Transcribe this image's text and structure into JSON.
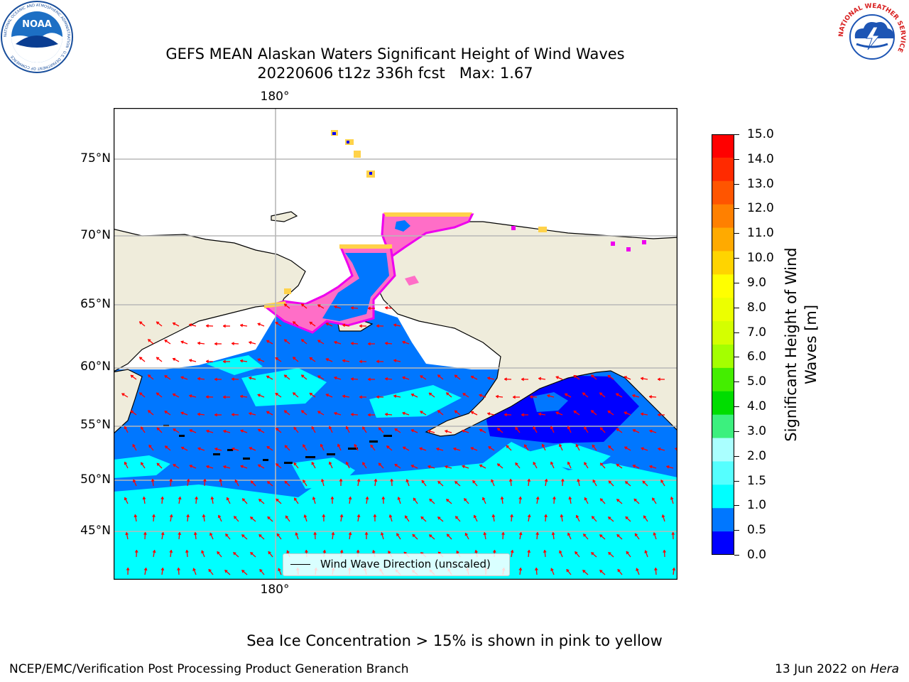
{
  "title": {
    "line1": "GEFS MEAN Alaskan Waters Significant Height of Wind Waves",
    "line2": "20220606 t12z 336h fcst   Max: 1.67"
  },
  "logos": {
    "noaa_text": "NOAA",
    "noaa_ring": "NATIONAL OCEANIC AND ATMOSPHERIC ADMINISTRATION · U.S. DEPARTMENT OF COMMERCE",
    "nws_ring": "NATIONAL WEATHER SERVICE"
  },
  "map": {
    "lon_top": "180°",
    "lon_bottom": "180°",
    "lat_labels": [
      "75°N",
      "70°N",
      "65°N",
      "60°N",
      "55°N",
      "50°N",
      "45°N"
    ],
    "legend_text": "Wind Wave Direction (unscaled)",
    "colors": {
      "land": "#efecdb",
      "deep_blue": "#0000ff",
      "blue": "#0077ff",
      "cyan": "#00ffff",
      "ice_pink": "#ff6ec7",
      "ice_magenta": "#ee00ee",
      "ice_yellow": "#ffd24a",
      "arrow": "#ff0000",
      "grid": "#b8b8b8"
    }
  },
  "colorbar": {
    "label_line1": "Significant Height of Wind",
    "label_line2": "Waves [m]",
    "ticks": [
      "15.0",
      "14.0",
      "13.0",
      "12.0",
      "11.0",
      "10.0",
      "9.0",
      "8.0",
      "7.0",
      "6.0",
      "5.0",
      "4.0",
      "3.0",
      "2.0",
      "1.5",
      "1.0",
      "0.5",
      "0.0"
    ],
    "colors_top_to_bottom": [
      "#ff0000",
      "#ff2a00",
      "#ff5500",
      "#ff8000",
      "#ffaa00",
      "#ffd400",
      "#ffff00",
      "#ecff00",
      "#d4ff00",
      "#a4ff00",
      "#44ee00",
      "#00dd00",
      "#3cf07e",
      "#aaffff",
      "#55ffff",
      "#00ffff",
      "#0077ff",
      "#0000ff"
    ]
  },
  "notes": {
    "sea_ice": "Sea Ice Concentration > 15% is shown in pink to yellow"
  },
  "footer": {
    "left": "NCEP/EMC/Verification Post Processing Product Generation Branch",
    "right_prefix": "13 Jun 2022 on ",
    "right_host": "Hera"
  }
}
